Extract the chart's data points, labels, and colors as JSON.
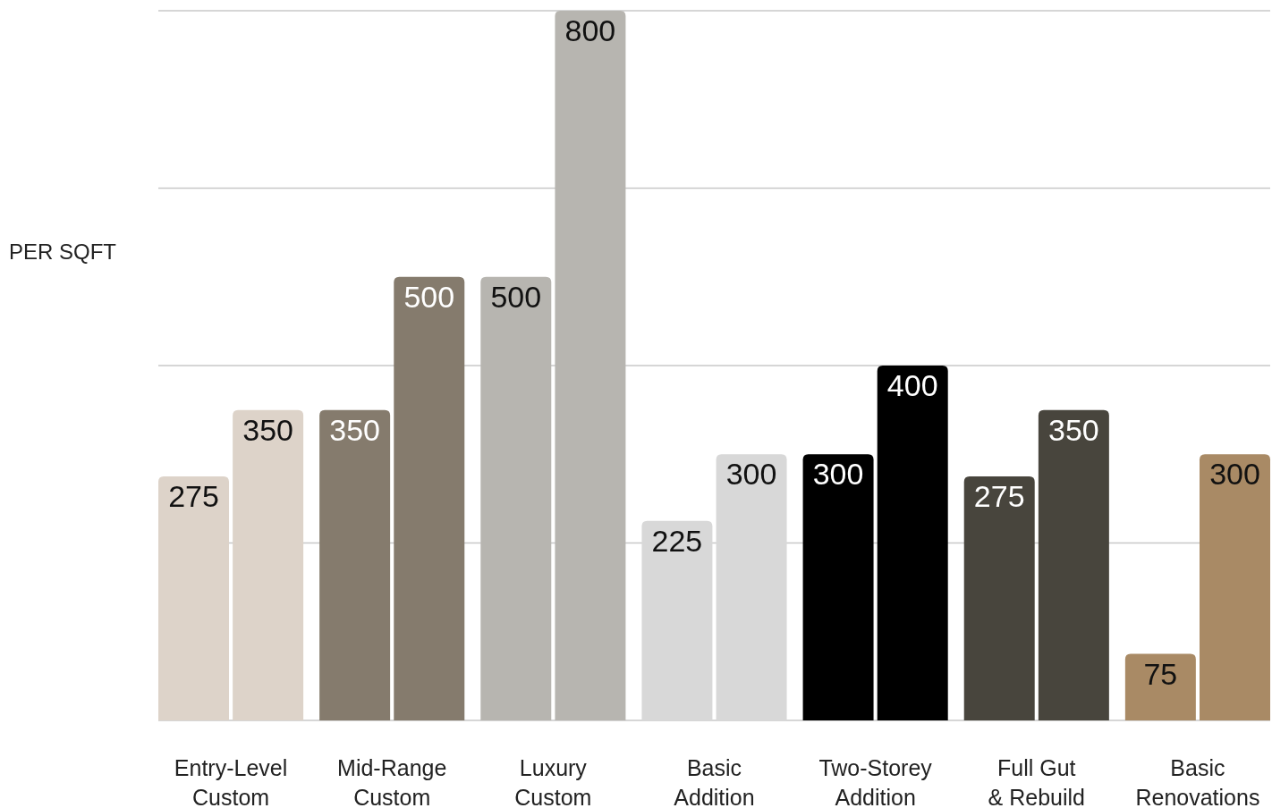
{
  "chart_data": {
    "type": "bar",
    "ylabel": "PER SQFT",
    "categories": [
      "Entry-Level Custom",
      "Mid-Range Custom",
      "Luxury Custom",
      "Basic Addition",
      "Two-Storey Addition",
      "Full Gut & Rebuild",
      "Basic Renovations"
    ],
    "series": [
      {
        "colors": [
          "#ddd3c9",
          "#857b6d",
          "#b7b5b0",
          "#d8d8d8",
          "#000000",
          "#48453d",
          "#a98a65"
        ],
        "values": [
          275,
          350,
          500,
          225,
          300,
          275,
          75
        ]
      },
      {
        "colors": [
          "#ddd3c9",
          "#857b6d",
          "#b7b5b0",
          "#d8d8d8",
          "#000000",
          "#48453d",
          "#a98a65"
        ],
        "values": [
          350,
          500,
          800,
          300,
          400,
          350,
          300
        ]
      }
    ],
    "ylim": [
      0,
      800
    ],
    "yticks": [
      {
        "value": 0,
        "label": null
      },
      {
        "value": 200,
        "label": null
      },
      {
        "value": 400,
        "label": null
      },
      {
        "value": 600,
        "label": null
      },
      {
        "value": 800,
        "label": null
      }
    ],
    "grid": "y",
    "tick_labels": "x",
    "data_labels": true
  }
}
